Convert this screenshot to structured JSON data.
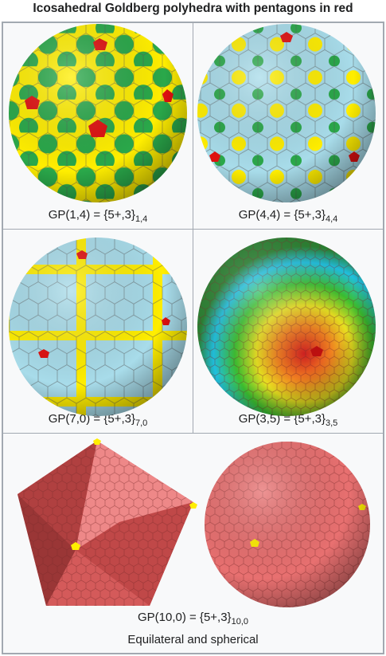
{
  "header": {
    "title": "Icosahedral Goldberg polyhedra with pentagons in red"
  },
  "cells": [
    {
      "label": "GP(1,4) = {5+,3}",
      "subscript": "1,4"
    },
    {
      "label": "GP(4,4) = {5+,3}",
      "subscript": "4,4"
    },
    {
      "label": "GP(7,0) = {5+,3}",
      "subscript": "7,0"
    },
    {
      "label": "GP(3,5) = {5+,3}",
      "subscript": "3,5"
    },
    {
      "label": "GP(10,0) = {5+,3}",
      "subscript": "10,0",
      "note": "Equilateral and spherical"
    }
  ]
}
